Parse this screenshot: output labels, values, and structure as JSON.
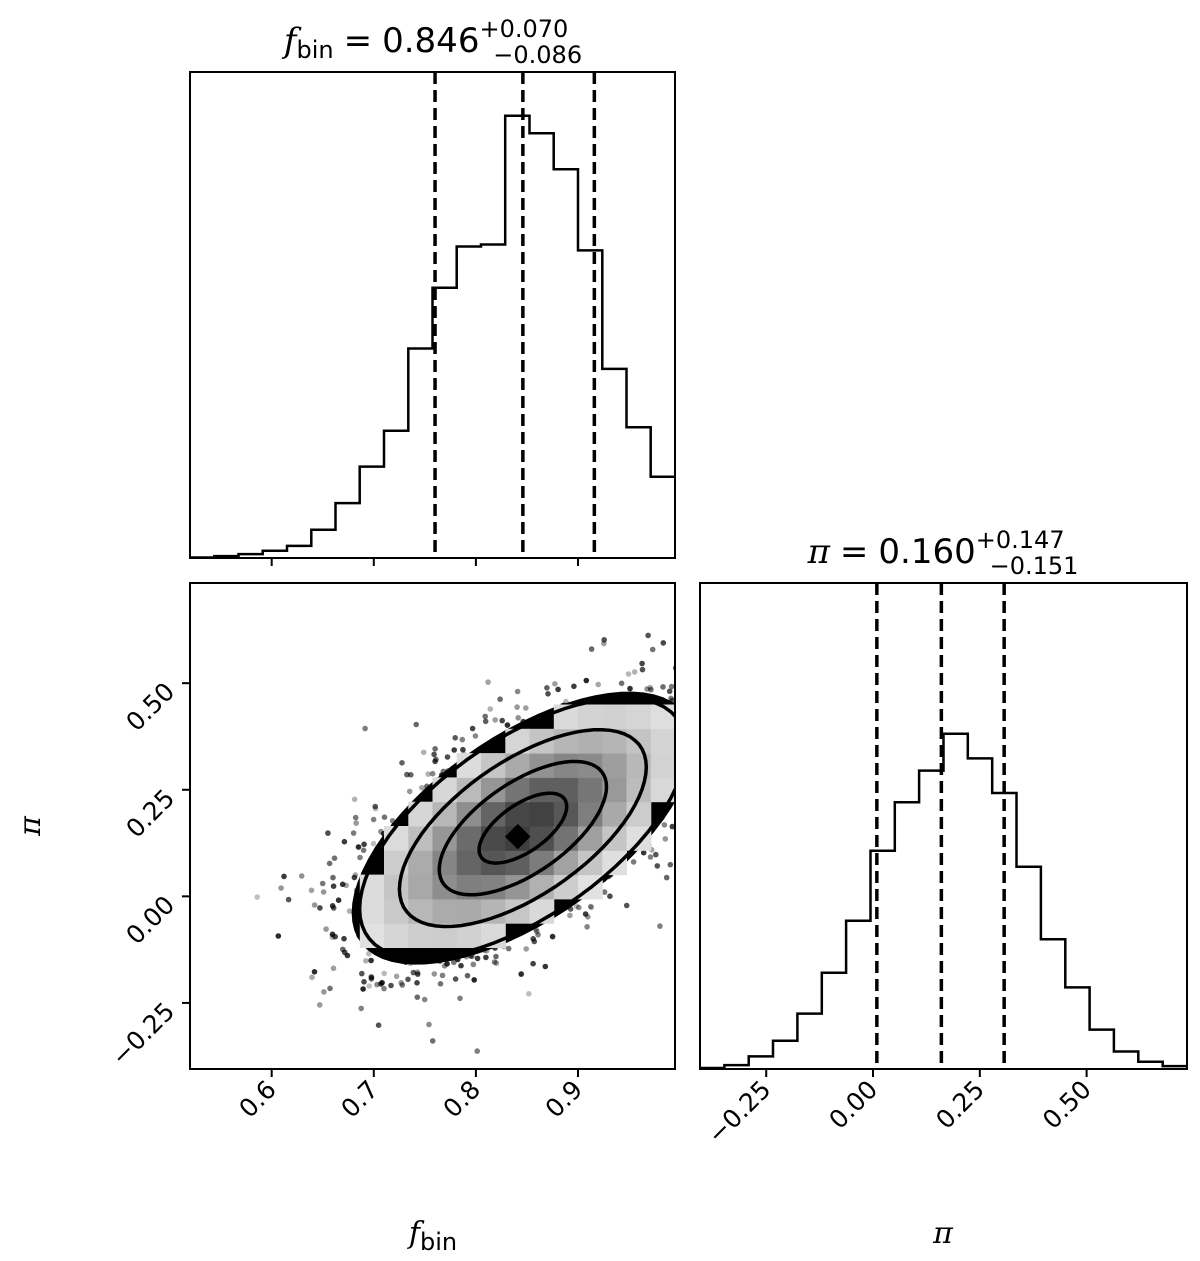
{
  "chart_data": [
    {
      "type": "histogram",
      "panel": "top-left",
      "parameter": "f_bin",
      "title": {
        "symbol": "f",
        "subscript": "bin",
        "equals": "=",
        "median": "0.846",
        "upper": "+0.070",
        "lower": "−0.086"
      },
      "xlim": [
        0.52,
        0.995
      ],
      "quantiles": [
        0.76,
        0.846,
        0.916
      ],
      "bin_edges": [
        0.52,
        0.5438,
        0.5675,
        0.5912,
        0.615,
        0.6388,
        0.6625,
        0.6862,
        0.71,
        0.7338,
        0.7575,
        0.7812,
        0.805,
        0.8287,
        0.8525,
        0.8762,
        0.9,
        0.9238,
        0.9475,
        0.9712,
        0.995
      ],
      "counts": [
        0.001,
        0.004,
        0.008,
        0.015,
        0.025,
        0.058,
        0.113,
        0.188,
        0.262,
        0.431,
        0.556,
        0.641,
        0.645,
        0.91,
        0.874,
        0.8,
        0.633,
        0.389,
        0.269,
        0.167
      ],
      "ylim": [
        0,
        1.0
      ],
      "grid": false
    },
    {
      "type": "histogram2d",
      "panel": "bottom-left",
      "xlabel_symbol": "f",
      "xlabel_subscript": "bin",
      "ylabel": "π",
      "xlim": [
        0.52,
        0.995
      ],
      "ylim": [
        -0.405,
        0.735
      ],
      "xticks": [
        0.6,
        0.7,
        0.8,
        0.9
      ],
      "xtick_labels": [
        "0.6",
        "0.7",
        "0.8",
        "0.9"
      ],
      "yticks": [
        -0.25,
        0.0,
        0.25,
        0.5
      ],
      "ytick_labels": [
        "−0.25",
        "0.00",
        "0.25",
        "0.50"
      ],
      "center": [
        0.846,
        0.16
      ],
      "correlation": 0.62,
      "contour_levels": [
        "0.5σ",
        "1σ",
        "1.5σ",
        "2σ"
      ],
      "grid": false
    },
    {
      "type": "histogram",
      "panel": "bottom-right",
      "parameter": "π",
      "title": {
        "symbol": "π",
        "equals": "=",
        "median": "0.160",
        "upper": "+0.147",
        "lower": "−0.151"
      },
      "xlabel": "π",
      "xlim": [
        -0.405,
        0.735
      ],
      "xticks": [
        -0.25,
        0.0,
        0.25,
        0.5
      ],
      "xtick_labels": [
        "−0.25",
        "0.00",
        "0.25",
        "0.50"
      ],
      "quantiles": [
        0.009,
        0.16,
        0.307
      ],
      "bin_edges": [
        -0.405,
        -0.348,
        -0.291,
        -0.234,
        -0.177,
        -0.12,
        -0.063,
        -0.006,
        0.051,
        0.108,
        0.165,
        0.222,
        0.279,
        0.336,
        0.393,
        0.45,
        0.507,
        0.564,
        0.621,
        0.678,
        0.735
      ],
      "counts": [
        0.002,
        0.008,
        0.026,
        0.058,
        0.114,
        0.198,
        0.305,
        0.449,
        0.549,
        0.614,
        0.69,
        0.639,
        0.568,
        0.416,
        0.267,
        0.168,
        0.081,
        0.036,
        0.015,
        0.006
      ],
      "ylim": [
        0,
        1.0
      ],
      "grid": false
    }
  ]
}
